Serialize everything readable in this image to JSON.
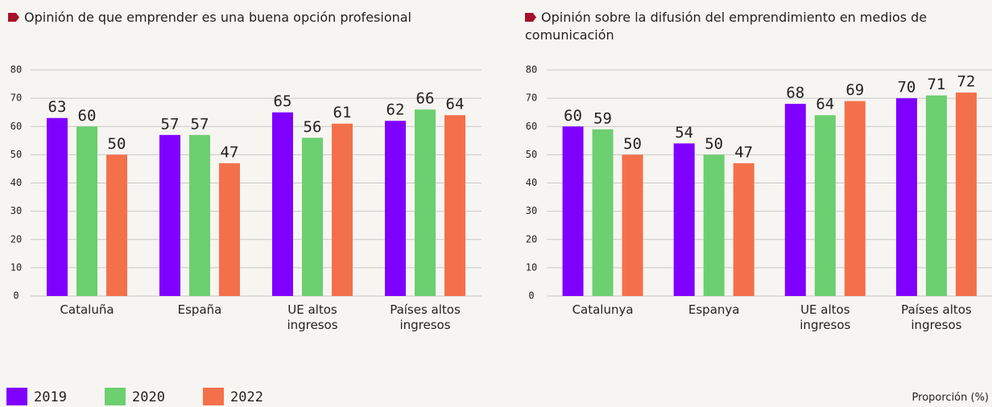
{
  "chart_data": [
    {
      "type": "bar",
      "title": "Opinión de que emprender es una buena opción profesional",
      "categories": [
        "Cataluña",
        "España",
        "UE altos ingresos",
        "Países altos ingresos"
      ],
      "series": [
        {
          "name": "2019",
          "color": "#8000ff",
          "values": [
            63,
            57,
            65,
            62
          ]
        },
        {
          "name": "2020",
          "color": "#6ccf70",
          "values": [
            60,
            57,
            56,
            66
          ]
        },
        {
          "name": "2022",
          "color": "#f4704a",
          "values": [
            50,
            47,
            61,
            64
          ]
        }
      ],
      "ylim": [
        0,
        80
      ],
      "yticks": [
        0,
        10,
        20,
        30,
        40,
        50,
        60,
        70,
        80
      ],
      "grid": true
    },
    {
      "type": "bar",
      "title": "Opinión sobre la difusión del emprendimiento en medios de comunicación",
      "categories": [
        "Catalunya",
        "Espanya",
        "UE altos ingresos",
        "Países altos ingresos"
      ],
      "series": [
        {
          "color": "#8000ff",
          "values": [
            60,
            54,
            68,
            70
          ]
        },
        {
          "color": "#6ccf70",
          "values": [
            59,
            50,
            64,
            71
          ]
        },
        {
          "color": "#f4704a",
          "values": [
            50,
            47,
            69,
            72
          ]
        }
      ],
      "ylim": [
        0,
        80
      ],
      "yticks": [
        0,
        10,
        20,
        30,
        40,
        50,
        60,
        70,
        80
      ],
      "grid": true
    }
  ],
  "note": "Proporción (%)"
}
